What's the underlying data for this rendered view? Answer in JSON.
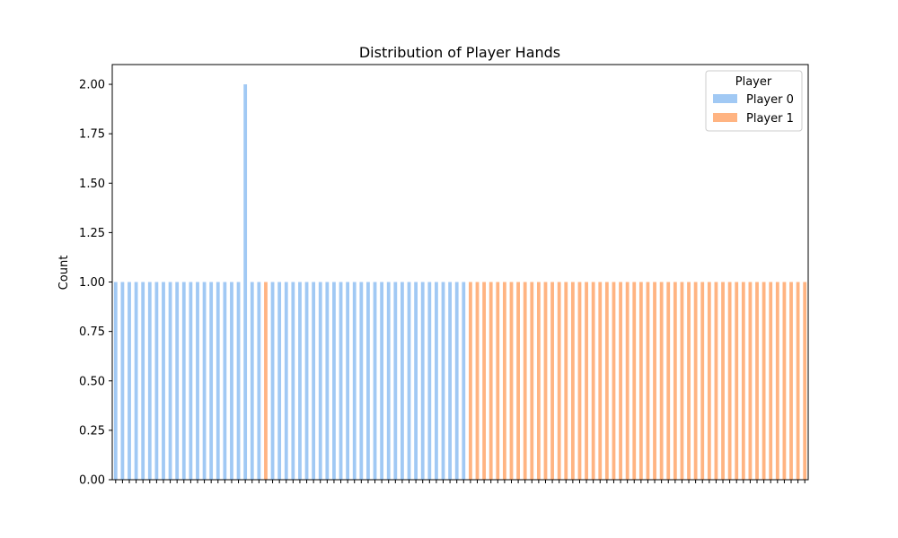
{
  "chart_data": {
    "type": "bar",
    "title": "Distribution of Player Hands",
    "xlabel": "",
    "ylabel": "Count",
    "ylim": [
      0,
      2.1
    ],
    "yticks": [
      "0.00",
      "0.25",
      "0.50",
      "0.75",
      "1.00",
      "1.25",
      "1.50",
      "1.75",
      "2.00"
    ],
    "ytick_values": [
      0,
      0.25,
      0.5,
      0.75,
      1.0,
      1.25,
      1.5,
      1.75,
      2.0
    ],
    "grid": false,
    "legend": {
      "title": "Player",
      "placement": "top-right"
    },
    "series": [
      {
        "name": "Player 0",
        "color": "#a1c9f4",
        "values": [
          1,
          1,
          1,
          1,
          1,
          1,
          1,
          1,
          1,
          1,
          1,
          1,
          1,
          1,
          1,
          1,
          1,
          1,
          1,
          2,
          1,
          1,
          0,
          1,
          1,
          1,
          1,
          1,
          1,
          1,
          1,
          1,
          1,
          1,
          1,
          1,
          1,
          1,
          1,
          1,
          1,
          1,
          1,
          1,
          1,
          1,
          1,
          1,
          1,
          1,
          1,
          1,
          0,
          0,
          0,
          0,
          0,
          0,
          0,
          0,
          0,
          0,
          0,
          0,
          0,
          0,
          0,
          0,
          0,
          0,
          0,
          0,
          0,
          0,
          0,
          0,
          0,
          0,
          0,
          0,
          0,
          0,
          0,
          0,
          0,
          0,
          0,
          0,
          0,
          0,
          0,
          0,
          0,
          0,
          0,
          0,
          0,
          0,
          0,
          0,
          0,
          0
        ]
      },
      {
        "name": "Player 1",
        "color": "#ffb482",
        "values": [
          0,
          0,
          0,
          0,
          0,
          0,
          0,
          0,
          0,
          0,
          0,
          0,
          0,
          0,
          0,
          0,
          0,
          0,
          0,
          0,
          0,
          0,
          1,
          0,
          0,
          0,
          0,
          0,
          0,
          0,
          0,
          0,
          0,
          0,
          0,
          0,
          0,
          0,
          0,
          0,
          0,
          0,
          0,
          0,
          0,
          0,
          0,
          0,
          0,
          0,
          0,
          0,
          1,
          1,
          1,
          1,
          1,
          1,
          1,
          1,
          1,
          1,
          1,
          1,
          1,
          1,
          1,
          1,
          1,
          1,
          1,
          1,
          1,
          1,
          1,
          1,
          1,
          1,
          1,
          1,
          1,
          1,
          1,
          1,
          1,
          1,
          1,
          1,
          1,
          1,
          1,
          1,
          1,
          1,
          1,
          1,
          1,
          1,
          1,
          1,
          1,
          1
        ]
      }
    ]
  }
}
